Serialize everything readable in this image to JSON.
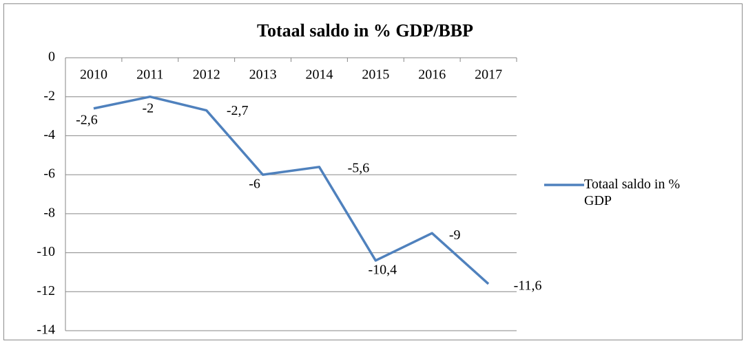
{
  "chart_data": {
    "type": "line",
    "title": "Totaal saldo in % GDP/BBP",
    "categories": [
      "2010",
      "2011",
      "2012",
      "2013",
      "2014",
      "2015",
      "2016",
      "2017"
    ],
    "series": [
      {
        "name": "Totaal saldo in % GDP",
        "color": "#4f81bd",
        "values": [
          -2.6,
          -2,
          -2.7,
          -6,
          -5.6,
          -10.4,
          -9,
          -11.6
        ],
        "value_labels": [
          "-2,6",
          "-2",
          "-2,7",
          "-6",
          "-5,6",
          "-10,4",
          "-9",
          "-11,6"
        ]
      }
    ],
    "ylim": [
      -14,
      0
    ],
    "yticks": [
      0,
      -2,
      -4,
      -6,
      -8,
      -10,
      -12,
      -14
    ],
    "grid": true,
    "legend": "right"
  }
}
